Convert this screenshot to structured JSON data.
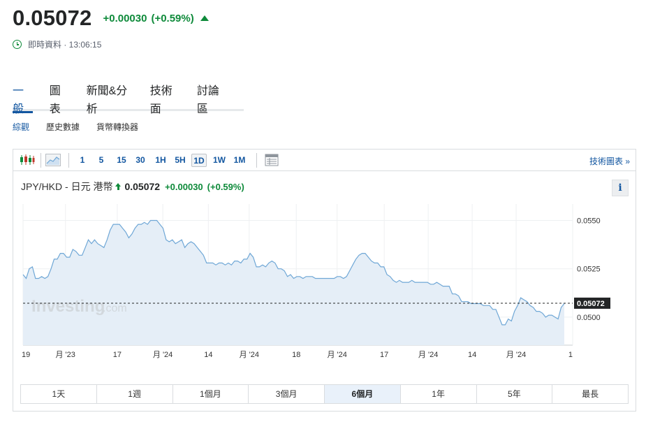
{
  "quote": {
    "price": "0.05072",
    "change": "+0.00030",
    "change_pct": "(+0.59%)",
    "direction": "up",
    "realtime_label": "即時資料 · 13:06:15"
  },
  "main_tabs": [
    "一般",
    "圖表",
    "新聞&分析",
    "技術面",
    "討論區"
  ],
  "main_tab_active": "一般",
  "sub_tabs": [
    "綜觀",
    "歷史數據",
    "貨幣轉換器"
  ],
  "sub_tab_active": "綜觀",
  "toolbar": {
    "chart_type_icons": [
      "candlestick-icon",
      "area-chart-icon"
    ],
    "intervals": [
      "1",
      "5",
      "15",
      "30",
      "1H",
      "5H",
      "1D",
      "1W",
      "1M"
    ],
    "active_interval": "1D",
    "table_icon": "table-icon",
    "tech_chart_link": "技術圖表 »"
  },
  "pair": {
    "name": "JPY/HKD - 日元 港幣",
    "price": "0.05072",
    "change": "+0.00030",
    "change_pct": "(+0.59%)",
    "info_label": "i"
  },
  "watermark": {
    "main": "Investing",
    "suffix": ".com"
  },
  "colors": {
    "up": "#0e8a3a",
    "accent": "#1256a0",
    "line": "#6fa7d6",
    "area_fill": "#e5eef7",
    "price_label_bg": "#232526"
  },
  "chart_data": {
    "type": "area",
    "ylim": [
      0.04855,
      0.05585
    ],
    "y_ticks": [
      "0.0550",
      "0.0525",
      "0.0500"
    ],
    "last_value_label": "0.05072",
    "last_value": 0.05072,
    "x_tick_labels": [
      "19",
      "月 '23",
      "17",
      "月 '24",
      "14",
      "月 '24",
      "18",
      "月 '24",
      "17",
      "月 '24",
      "14",
      "月 '24",
      "1"
    ],
    "x_tick_positions": [
      0,
      13.5,
      30,
      44.5,
      59,
      72,
      87,
      100,
      115,
      129,
      143,
      157,
      175
    ],
    "x_span": 175,
    "values": [
      0.0522,
      0.052,
      0.0525,
      0.0526,
      0.052,
      0.052,
      0.0521,
      0.052,
      0.0521,
      0.0525,
      0.053,
      0.053,
      0.0533,
      0.0533,
      0.0531,
      0.0531,
      0.0535,
      0.0534,
      0.0532,
      0.0532,
      0.0536,
      0.054,
      0.0538,
      0.054,
      0.0538,
      0.0537,
      0.0536,
      0.054,
      0.0545,
      0.0548,
      0.0548,
      0.0548,
      0.0546,
      0.0544,
      0.0541,
      0.0543,
      0.0546,
      0.0548,
      0.0548,
      0.0549,
      0.0548,
      0.055,
      0.055,
      0.055,
      0.0548,
      0.0546,
      0.054,
      0.0539,
      0.054,
      0.0538,
      0.0539,
      0.054,
      0.0536,
      0.0538,
      0.0539,
      0.0538,
      0.0536,
      0.0534,
      0.0532,
      0.0528,
      0.0528,
      0.0528,
      0.0527,
      0.0528,
      0.0528,
      0.0527,
      0.0528,
      0.0527,
      0.0529,
      0.0529,
      0.0528,
      0.053,
      0.053,
      0.0533,
      0.0531,
      0.0526,
      0.0526,
      0.0527,
      0.0526,
      0.0528,
      0.0529,
      0.0528,
      0.0525,
      0.0525,
      0.0524,
      0.0521,
      0.0522,
      0.052,
      0.0521,
      0.0521,
      0.052,
      0.0521,
      0.0521,
      0.0521,
      0.052,
      0.052,
      0.052,
      0.052,
      0.052,
      0.052,
      0.052,
      0.0521,
      0.0521,
      0.052,
      0.0521,
      0.0524,
      0.0527,
      0.053,
      0.0532,
      0.0533,
      0.0533,
      0.0531,
      0.0529,
      0.0528,
      0.0528,
      0.0526,
      0.0526,
      0.0522,
      0.0521,
      0.0519,
      0.0518,
      0.0519,
      0.0518,
      0.0518,
      0.0518,
      0.0519,
      0.0518,
      0.0518,
      0.0518,
      0.0518,
      0.0518,
      0.0517,
      0.0517,
      0.0518,
      0.0517,
      0.0516,
      0.0516,
      0.0516,
      0.0512,
      0.0512,
      0.0511,
      0.0508,
      0.0508,
      0.0508,
      0.0507,
      0.0507,
      0.0507,
      0.0507,
      0.0506,
      0.0506,
      0.0506,
      0.0504,
      0.0504,
      0.05,
      0.0496,
      0.0496,
      0.0499,
      0.0498,
      0.0503,
      0.0506,
      0.051,
      0.0509,
      0.0508,
      0.0506,
      0.0505,
      0.0503,
      0.0503,
      0.0502,
      0.05,
      0.0501,
      0.0501,
      0.05,
      0.0499,
      0.0505,
      0.0507
    ],
    "grid": true
  },
  "ranges": [
    "1天",
    "1週",
    "1個月",
    "3個月",
    "6個月",
    "1年",
    "5年",
    "最長"
  ],
  "range_active": "6個月"
}
